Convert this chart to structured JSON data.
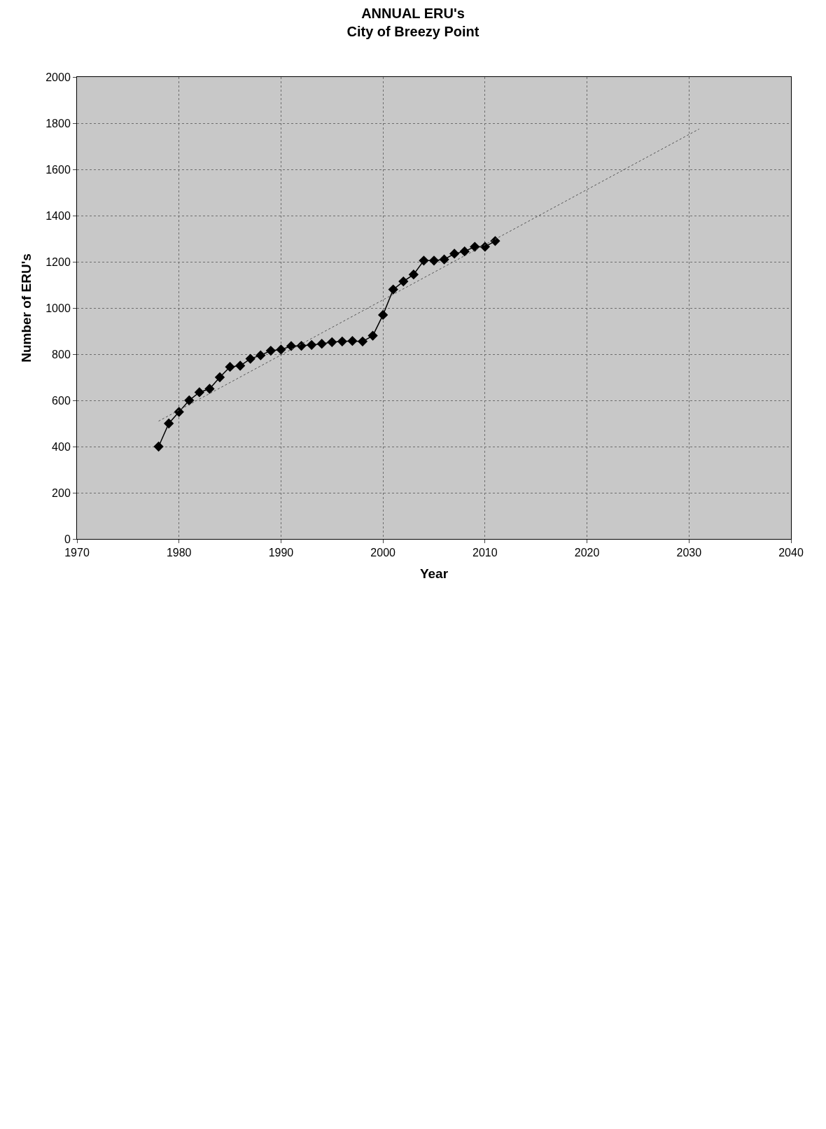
{
  "chart_data": {
    "type": "line",
    "title": "ANNUAL ERU's\nCity of Breezy Point",
    "xlabel": "Year",
    "ylabel": "Number of ERU's",
    "xlim": [
      1970,
      2040
    ],
    "xticks": [
      1970,
      1980,
      1990,
      2000,
      2010,
      2020,
      2030,
      2040
    ],
    "ylim": [
      0,
      2000
    ],
    "yticks": [
      0,
      200,
      400,
      600,
      800,
      1000,
      1200,
      1400,
      1600,
      1800,
      2000
    ],
    "grid": true,
    "marker": "diamond",
    "line_style": "solid",
    "series": [
      {
        "color": "#000000",
        "x": [
          1978,
          1979,
          1980,
          1981,
          1982,
          1983,
          1984,
          1985,
          1986,
          1987,
          1988,
          1989,
          1990,
          1991,
          1992,
          1993,
          1994,
          1995,
          1996,
          1997,
          1998,
          1999,
          2000,
          2001,
          2002,
          2003,
          2004,
          2005,
          2006,
          2007,
          2008,
          2009,
          2010,
          2011
        ],
        "values": [
          400,
          500,
          550,
          600,
          635,
          650,
          700,
          745,
          750,
          780,
          795,
          815,
          820,
          835,
          836,
          840,
          845,
          852,
          855,
          857,
          855,
          880,
          970,
          1080,
          1115,
          1145,
          1205,
          1205,
          1210,
          1235,
          1245,
          1265,
          1265,
          1290
        ]
      },
      {
        "type": "line",
        "color": "#555555",
        "marker": "none",
        "line_style": "dotted",
        "x": [
          1978,
          2031
        ],
        "values": [
          510,
          1775
        ]
      }
    ]
  }
}
